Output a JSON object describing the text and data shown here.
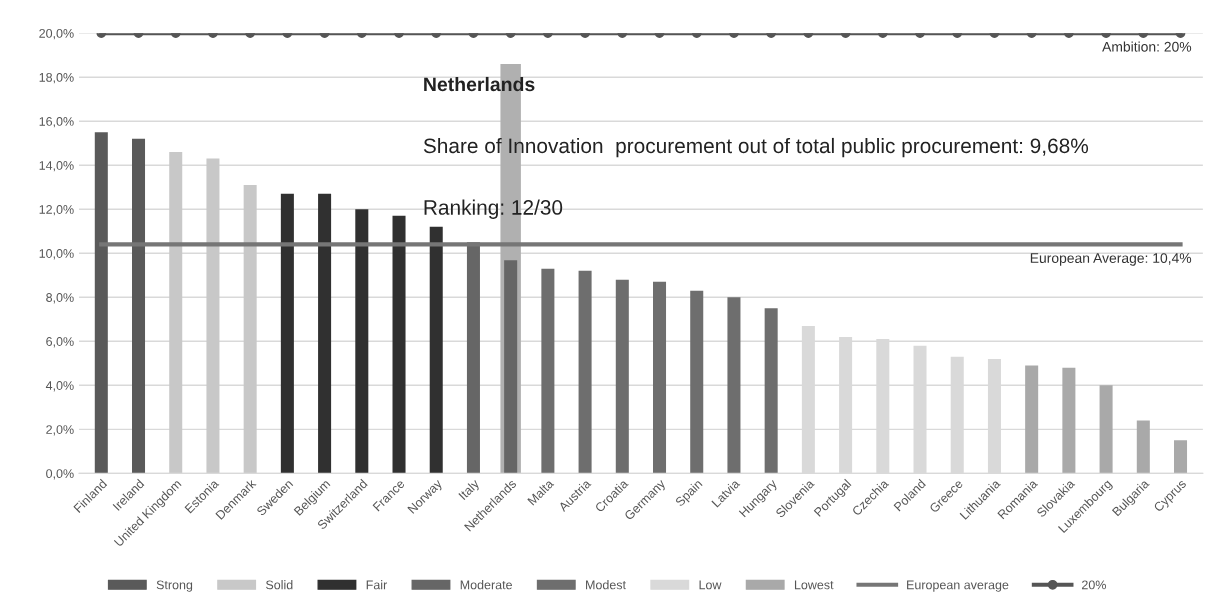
{
  "chart_data": {
    "type": "bar",
    "categories": [
      "Finland",
      "Ireland",
      "United Kingdom",
      "Estonia",
      "Denmark",
      "Sweden",
      "Belgium",
      "Switzerland",
      "France",
      "Norway",
      "Italy",
      "Netherlands",
      "Malta",
      "Austria",
      "Croatia",
      "Germany",
      "Spain",
      "Latvia",
      "Hungary",
      "Slovenia",
      "Portugal",
      "Czechia",
      "Poland",
      "Greece",
      "Lithuania",
      "Romania",
      "Slovakia",
      "Luxembourg",
      "Bulgaria",
      "Cyprus"
    ],
    "series": [
      {
        "color": "#b0b0b0",
        "values": [
          null,
          null,
          null,
          null,
          null,
          null,
          null,
          null,
          null,
          null,
          null,
          18.6,
          null,
          null,
          null,
          null,
          null,
          null,
          null,
          null,
          null,
          null,
          null,
          null,
          null,
          null,
          null,
          null,
          null,
          null
        ]
      },
      {
        "name": "Strong",
        "color": "#5a5a5a",
        "values": [
          15.5,
          15.2,
          null,
          null,
          null,
          null,
          null,
          null,
          null,
          null,
          null,
          null,
          null,
          null,
          null,
          null,
          null,
          null,
          null,
          null,
          null,
          null,
          null,
          null,
          null,
          null,
          null,
          null,
          null,
          null
        ]
      },
      {
        "name": "Solid",
        "color": "#c8c8c8",
        "values": [
          null,
          null,
          14.6,
          14.3,
          13.1,
          null,
          null,
          null,
          null,
          null,
          null,
          null,
          null,
          null,
          null,
          null,
          null,
          null,
          null,
          null,
          null,
          null,
          null,
          null,
          null,
          null,
          null,
          null,
          null,
          null
        ]
      },
      {
        "name": "Fair",
        "color": "#303030",
        "values": [
          null,
          null,
          null,
          null,
          null,
          12.7,
          12.7,
          12.0,
          11.7,
          11.2,
          null,
          null,
          null,
          null,
          null,
          null,
          null,
          null,
          null,
          null,
          null,
          null,
          null,
          null,
          null,
          null,
          null,
          null,
          null,
          null
        ]
      },
      {
        "name": "Moderate",
        "color": "#666666",
        "values": [
          null,
          null,
          null,
          null,
          null,
          null,
          null,
          null,
          null,
          null,
          10.5,
          9.68,
          null,
          null,
          null,
          null,
          null,
          null,
          null,
          null,
          null,
          null,
          null,
          null,
          null,
          null,
          null,
          null,
          null,
          null
        ]
      },
      {
        "name": "Modest",
        "color": "#6e6e6e",
        "values": [
          null,
          null,
          null,
          null,
          null,
          null,
          null,
          null,
          null,
          null,
          null,
          null,
          9.3,
          9.2,
          8.8,
          8.7,
          8.3,
          8.0,
          7.5,
          null,
          null,
          null,
          null,
          null,
          null,
          null,
          null,
          null,
          null,
          null
        ]
      },
      {
        "name": "Low",
        "color": "#d9d9d9",
        "values": [
          null,
          null,
          null,
          null,
          null,
          null,
          null,
          null,
          null,
          null,
          null,
          null,
          null,
          null,
          null,
          null,
          null,
          null,
          null,
          6.7,
          6.2,
          6.1,
          5.8,
          5.3,
          5.2,
          null,
          null,
          null,
          null,
          null
        ]
      },
      {
        "name": "Lowest",
        "color": "#a9a9a9",
        "values": [
          null,
          null,
          null,
          null,
          null,
          null,
          null,
          null,
          null,
          null,
          null,
          null,
          null,
          null,
          null,
          null,
          null,
          null,
          null,
          null,
          null,
          null,
          null,
          null,
          null,
          4.9,
          4.8,
          4.0,
          2.4,
          1.5
        ]
      },
      {
        "name": "European average",
        "type": "line",
        "color": "#767676",
        "marker": "none",
        "values": [
          10.4,
          10.4,
          10.4,
          10.4,
          10.4,
          10.4,
          10.4,
          10.4,
          10.4,
          10.4,
          10.4,
          10.4,
          10.4,
          10.4,
          10.4,
          10.4,
          10.4,
          10.4,
          10.4,
          10.4,
          10.4,
          10.4,
          10.4,
          10.4,
          10.4,
          10.4,
          10.4,
          10.4,
          10.4,
          10.4
        ]
      },
      {
        "name": "20%",
        "type": "line",
        "color": "#555555",
        "marker": "circle",
        "values": [
          20,
          20,
          20,
          20,
          20,
          20,
          20,
          20,
          20,
          20,
          20,
          20,
          20,
          20,
          20,
          20,
          20,
          20,
          20,
          20,
          20,
          20,
          20,
          20,
          20,
          20,
          20,
          20,
          20,
          20
        ]
      }
    ],
    "ylim": [
      0,
      20
    ],
    "yticks": [
      {
        "value": 0,
        "label": "0,0%"
      },
      {
        "value": 2,
        "label": "2,0%"
      },
      {
        "value": 4,
        "label": "4,0%"
      },
      {
        "value": 6,
        "label": "6,0%"
      },
      {
        "value": 8,
        "label": "8,0%"
      },
      {
        "value": 10,
        "label": "10,0%"
      },
      {
        "value": 12,
        "label": "12,0%"
      },
      {
        "value": 14,
        "label": "14,0%"
      },
      {
        "value": 16,
        "label": "16,0%"
      },
      {
        "value": 18,
        "label": "18,0%"
      },
      {
        "value": 20,
        "label": "20,0%"
      }
    ],
    "grid": "y",
    "legend": "bottom",
    "line_style": "solid",
    "annotations": [
      "Netherlands",
      "Share of Innovation  procurement out of total public procurement: 9,68%",
      "Ranking: 12/30",
      {
        "text": "Ambition: 20%",
        "x": "Cyprus",
        "y": 20
      },
      {
        "text": "European Average: 10,4%",
        "x": "Cyprus",
        "y": 10.4
      }
    ]
  }
}
